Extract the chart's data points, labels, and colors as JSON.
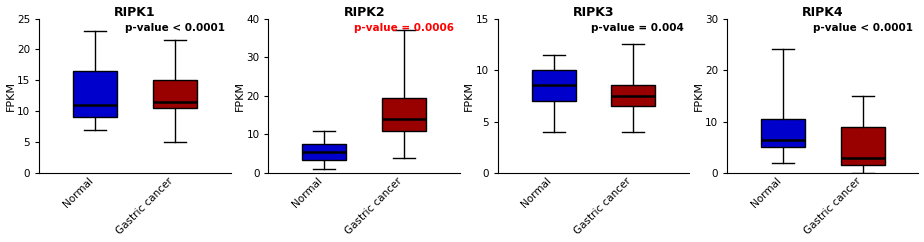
{
  "panels": [
    {
      "title": "RIPK1",
      "pvalue_text": "p-value < 0.0001",
      "pvalue_color": "black",
      "ylim": [
        0,
        25
      ],
      "yticks": [
        0,
        5,
        10,
        15,
        20,
        25
      ],
      "ylabel": "FPKM",
      "normal": {
        "whislo": 7.0,
        "q1": 9.0,
        "median": 11.0,
        "q3": 16.5,
        "whishi": 23.0,
        "color": "#0000cc"
      },
      "cancer": {
        "whislo": 5.0,
        "q1": 10.5,
        "median": 11.5,
        "q3": 15.0,
        "whishi": 21.5,
        "color": "#990000"
      }
    },
    {
      "title": "RIPK2",
      "pvalue_text": "p-value = 0.0006",
      "pvalue_color": "red",
      "ylim": [
        0,
        40
      ],
      "yticks": [
        0,
        10,
        20,
        30,
        40
      ],
      "ylabel": "FPKM",
      "normal": {
        "whislo": 1.0,
        "q1": 3.5,
        "median": 5.5,
        "q3": 7.5,
        "whishi": 11.0,
        "color": "#0000cc"
      },
      "cancer": {
        "whislo": 4.0,
        "q1": 11.0,
        "median": 14.0,
        "q3": 19.5,
        "whishi": 37.0,
        "color": "#990000"
      }
    },
    {
      "title": "RIPK3",
      "pvalue_text": "p-value = 0.004",
      "pvalue_color": "black",
      "ylim": [
        0,
        15
      ],
      "yticks": [
        0,
        5,
        10,
        15
      ],
      "ylabel": "FPKM",
      "normal": {
        "whislo": 4.0,
        "q1": 7.0,
        "median": 8.5,
        "q3": 10.0,
        "whishi": 11.5,
        "color": "#0000cc"
      },
      "cancer": {
        "whislo": 4.0,
        "q1": 6.5,
        "median": 7.5,
        "q3": 8.5,
        "whishi": 12.5,
        "color": "#990000"
      }
    },
    {
      "title": "RIPK4",
      "pvalue_text": "p-value < 0.0001",
      "pvalue_color": "black",
      "ylim": [
        0,
        30
      ],
      "yticks": [
        0,
        10,
        20,
        30
      ],
      "ylabel": "FPKM",
      "normal": {
        "whislo": 2.0,
        "q1": 5.0,
        "median": 6.5,
        "q3": 10.5,
        "whishi": 24.0,
        "color": "#0000cc"
      },
      "cancer": {
        "whislo": 0.0,
        "q1": 1.5,
        "median": 3.0,
        "q3": 9.0,
        "whishi": 15.0,
        "color": "#990000"
      }
    }
  ],
  "background_color": "#ffffff",
  "box_width": 0.55,
  "xlabel_normal": "Normal",
  "xlabel_cancer": "Gastric cancer"
}
